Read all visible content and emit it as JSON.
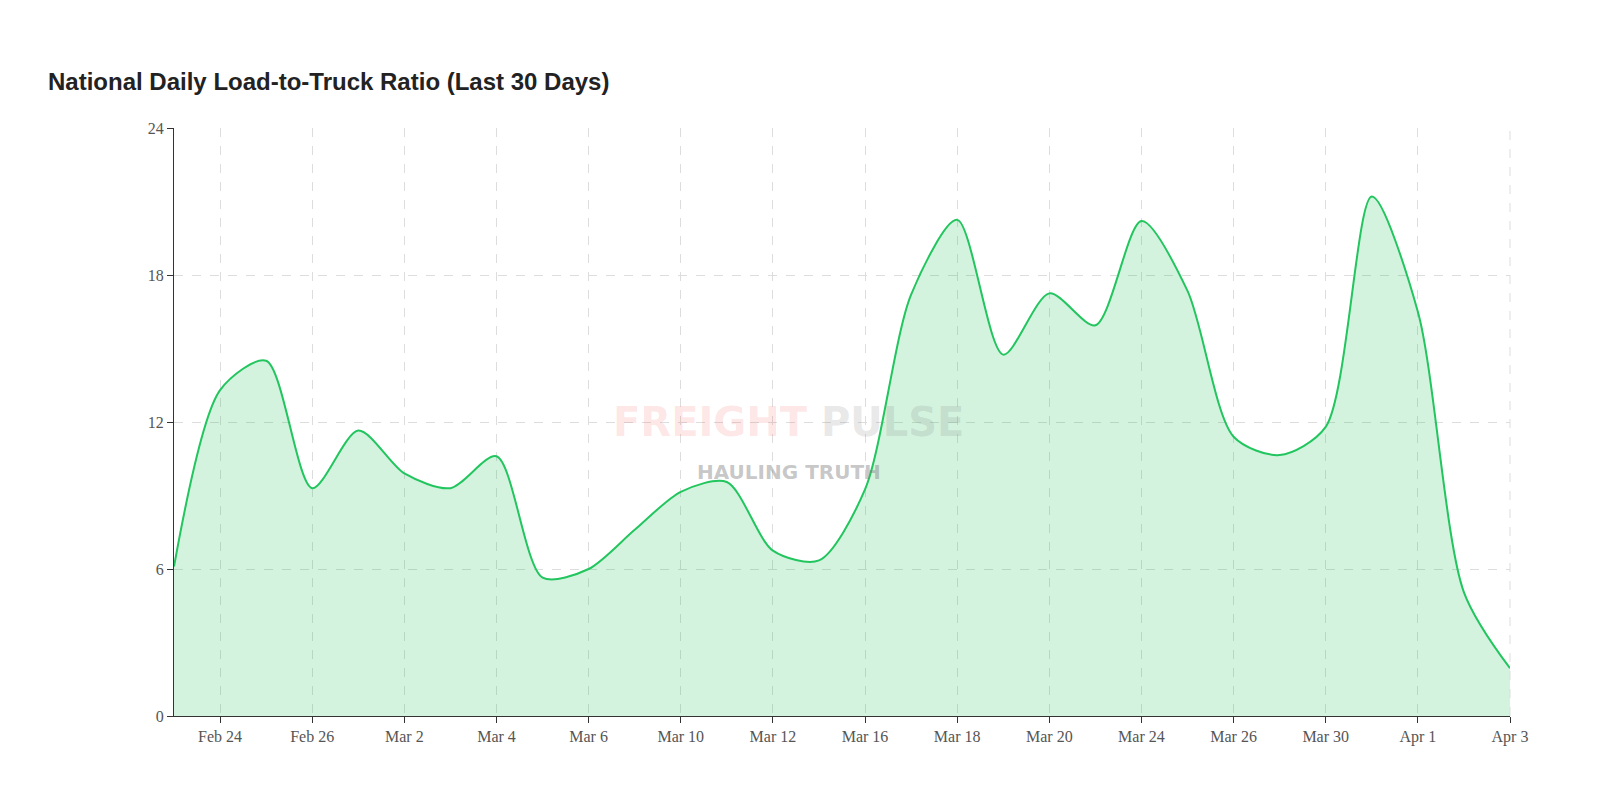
{
  "chart_data": {
    "type": "line",
    "title": "National Daily Load-to-Truck Ratio (Last 30 Days)",
    "watermark": "FREIGHT PULSE",
    "watermark_tagline": "HAULING TRUTH",
    "categories": [
      null,
      "Feb 24",
      null,
      "Feb 26",
      null,
      "Mar 2",
      null,
      "Mar 4",
      null,
      "Mar 6",
      null,
      "Mar 10",
      null,
      "Mar 12",
      null,
      "Mar 16",
      null,
      "Mar 18",
      null,
      "Mar 20",
      null,
      "Mar 24",
      null,
      "Mar 26",
      null,
      "Mar 30",
      null,
      "Apr 1",
      null,
      "Apr 3"
    ],
    "values": [
      6.1,
      13.3,
      14.5,
      9.3,
      11.65,
      9.9,
      9.3,
      10.6,
      5.65,
      6.0,
      7.6,
      9.15,
      9.55,
      6.75,
      6.35,
      9.25,
      17.2,
      20.25,
      14.75,
      17.25,
      15.95,
      20.2,
      17.35,
      11.4,
      10.65,
      11.8,
      21.2,
      16.5,
      5.05,
      1.95
    ],
    "color": "#22c55e",
    "ylim": [
      0,
      24
    ],
    "yticks": [
      0,
      6,
      12,
      18,
      24
    ],
    "grid": true
  }
}
